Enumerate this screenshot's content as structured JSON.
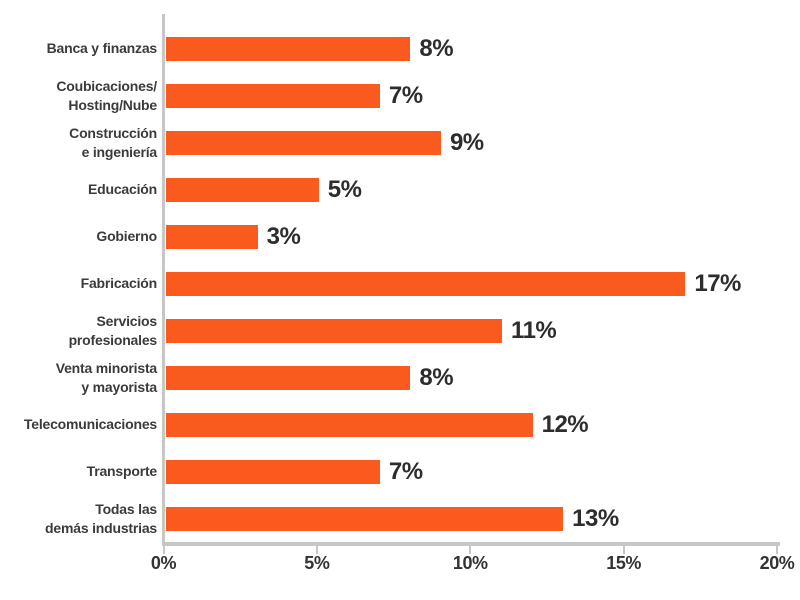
{
  "colors": {
    "bar": "#FA5A1E",
    "axis": "#C7C7C7",
    "category_text": "#3B3B3B",
    "value_text": "#2D2D2D",
    "tick_text": "#333333",
    "background": "#FFFFFF"
  },
  "chart_data": {
    "type": "bar",
    "orientation": "horizontal",
    "title": "",
    "xlabel": "",
    "ylabel": "",
    "grid": false,
    "legend": false,
    "xlim": [
      0,
      20
    ],
    "bar_color": "#FA5A1E",
    "categories": [
      "Banca y finanzas",
      "Coubicaciones/\nHosting/Nube",
      "Construcción\ne ingeniería",
      "Educación",
      "Gobierno",
      "Fabricación",
      "Servicios\nprofesionales",
      "Venta minorista\ny mayorista",
      "Telecomunicaciones",
      "Transporte",
      "Todas las\ndemás industrias"
    ],
    "values": [
      8,
      7,
      9,
      5,
      3,
      17,
      11,
      8,
      12,
      7,
      13
    ],
    "value_labels": [
      "8%",
      "7%",
      "9%",
      "5%",
      "3%",
      "17%",
      "11%",
      "8%",
      "12%",
      "7%",
      "13%"
    ],
    "x_tick_values": [
      0,
      5,
      10,
      15,
      20
    ],
    "x_tick_labels": [
      "0%",
      "5%",
      "10%",
      "15%",
      "20%"
    ]
  }
}
